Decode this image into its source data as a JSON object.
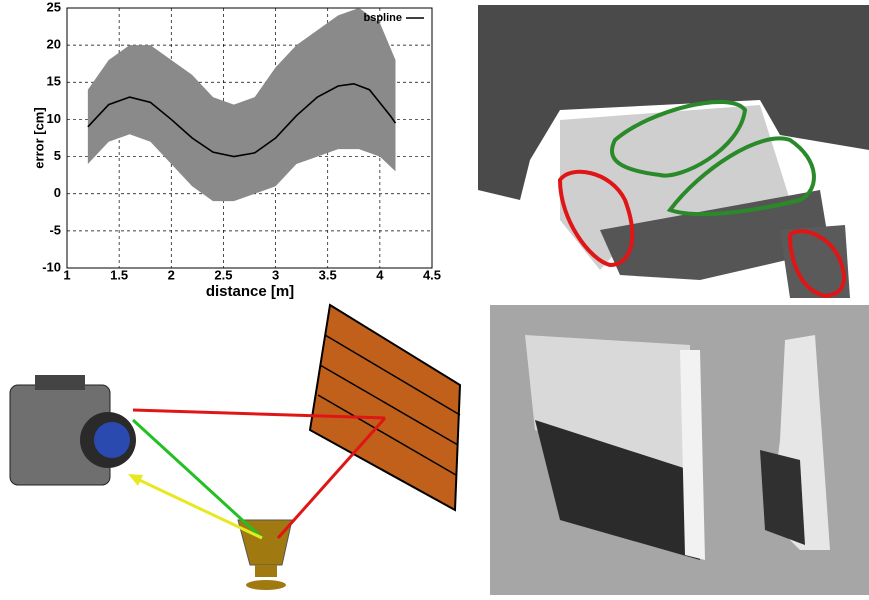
{
  "chart_data": {
    "type": "line",
    "xlabel": "distance [m]",
    "ylabel": "error [cm]",
    "xlim": [
      1,
      4.5
    ],
    "xticks": [
      1,
      1.5,
      2,
      2.5,
      3,
      3.5,
      4,
      4.5
    ],
    "ylim": [
      -10,
      25
    ],
    "yticks": [
      -10,
      -5,
      0,
      5,
      10,
      15,
      20,
      25
    ],
    "grid": true,
    "legend": "top-right",
    "series": [
      {
        "name": "bspline",
        "color": "#000000",
        "x": [
          1.2,
          1.4,
          1.6,
          1.8,
          2.0,
          2.2,
          2.4,
          2.6,
          2.8,
          3.0,
          3.2,
          3.4,
          3.6,
          3.75,
          3.9,
          4.1,
          4.15
        ],
        "values": [
          9,
          12,
          13,
          12.3,
          10,
          7.5,
          5.6,
          5,
          5.5,
          7.5,
          10.5,
          13,
          14.5,
          14.8,
          14,
          10.5,
          9.5
        ]
      }
    ],
    "spread": {
      "color": "#8a8a8a",
      "x": [
        1.2,
        1.4,
        1.6,
        1.8,
        2.0,
        2.2,
        2.4,
        2.6,
        2.8,
        3.0,
        3.2,
        3.4,
        3.6,
        3.8,
        4.0,
        4.15
      ],
      "upper": [
        14,
        18,
        20,
        20,
        18,
        16,
        13,
        12,
        13,
        17,
        20,
        22,
        24,
        25,
        23,
        18
      ],
      "lower": [
        4,
        7,
        8,
        7,
        4,
        1,
        -1,
        -1,
        0,
        1,
        4,
        5,
        6,
        6,
        5,
        3
      ]
    }
  }
}
